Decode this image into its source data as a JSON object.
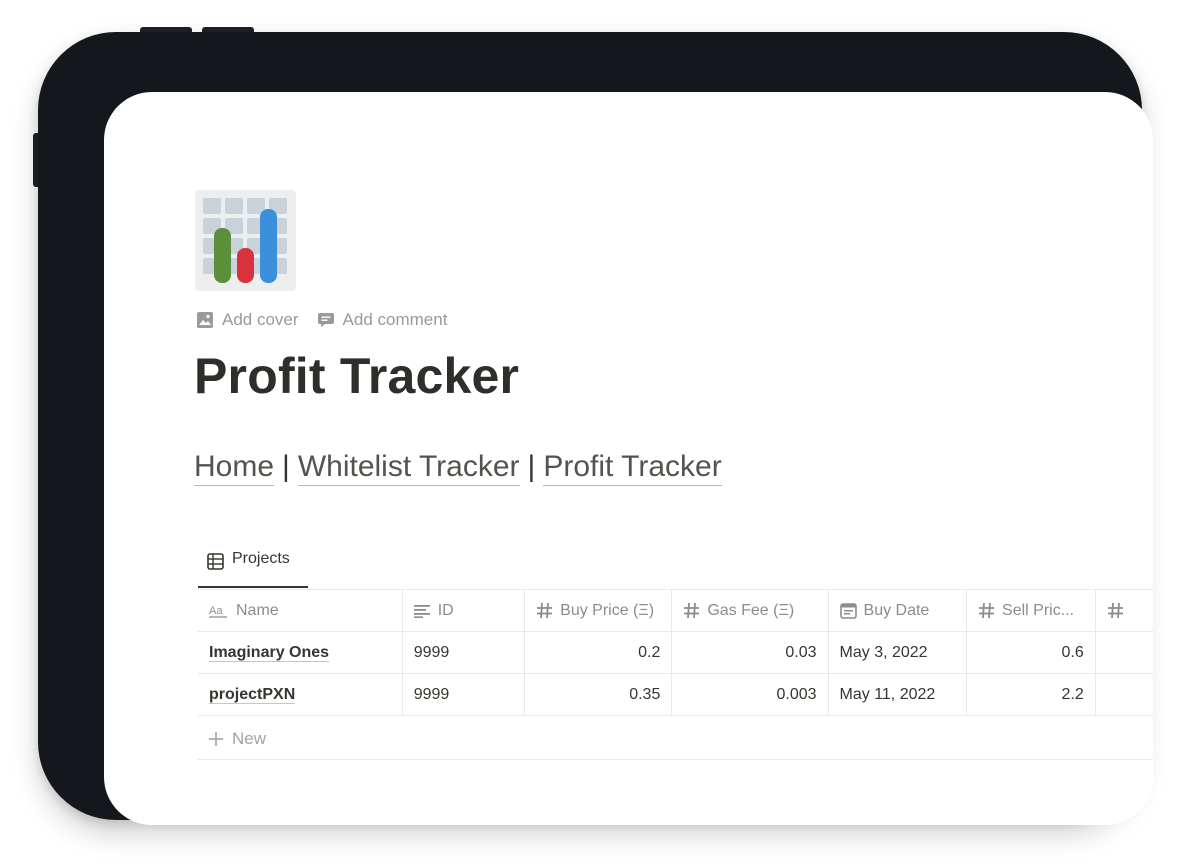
{
  "page": {
    "icon": "bar-chart-emoji",
    "add_cover_label": "Add cover",
    "add_comment_label": "Add comment",
    "title": "Profit Tracker"
  },
  "nav": {
    "links": [
      "Home",
      "Whitelist Tracker",
      "Profit Tracker"
    ],
    "separator": "|"
  },
  "view": {
    "tab_label": "Projects",
    "tab_icon": "table-icon"
  },
  "table": {
    "columns": [
      {
        "label": "Name",
        "icon": "title-aa-icon"
      },
      {
        "label": "ID",
        "icon": "text-lines-icon"
      },
      {
        "label": "Buy Price (Ξ)",
        "icon": "hash-icon"
      },
      {
        "label": "Gas Fee (Ξ)",
        "icon": "hash-icon"
      },
      {
        "label": "Buy Date",
        "icon": "calendar-icon"
      },
      {
        "label": "Sell Pric...",
        "icon": "hash-icon"
      },
      {
        "label": "",
        "icon": "hash-icon"
      }
    ],
    "rows": [
      {
        "name": "Imaginary Ones",
        "id": "9999",
        "buy_price": "0.2",
        "gas_fee": "0.03",
        "buy_date": "May 3, 2022",
        "sell_price": "0.6"
      },
      {
        "name": "projectPXN",
        "id": "9999",
        "buy_price": "0.35",
        "gas_fee": "0.003",
        "buy_date": "May 11, 2022",
        "sell_price": "2.2"
      }
    ],
    "new_label": "New"
  },
  "colors": {
    "device_frame": "#14171c",
    "title_text": "#2f2e2b",
    "muted_text": "#9b9a97",
    "icon_bar_green": "#5b8f3a",
    "icon_bar_red": "#d9323f",
    "icon_bar_blue": "#3b8fdb"
  }
}
